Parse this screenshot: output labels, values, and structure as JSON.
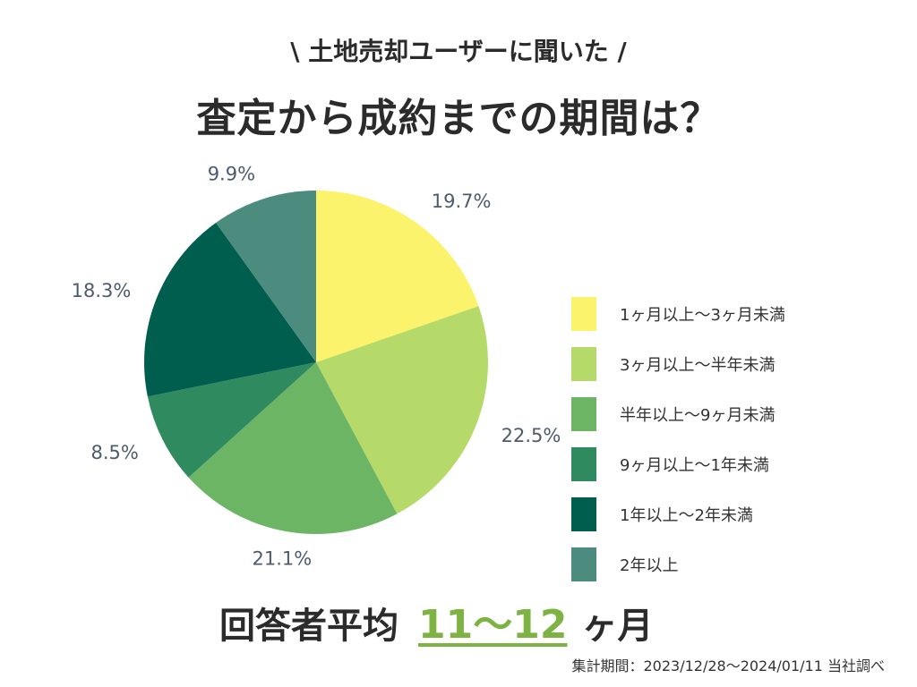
{
  "header": {
    "subtitle": "\\ 土地売却ユーザーに聞いた /",
    "title": "査定から成約までの期間は？"
  },
  "chart_data": {
    "type": "pie",
    "unit": "%",
    "slices": [
      {
        "label": "1ヶ月以上〜3ヶ月未満",
        "value": 19.7,
        "value_label": "19.7%",
        "color": "#fbf36b"
      },
      {
        "label": "3ヶ月以上〜半年未満",
        "value": 22.5,
        "value_label": "22.5%",
        "color": "#b5da6a"
      },
      {
        "label": "半年以上〜9ヶ月未満",
        "value": 21.1,
        "value_label": "21.1%",
        "color": "#6cb564"
      },
      {
        "label": "9ヶ月以上〜1年未満",
        "value": 8.5,
        "value_label": "8.5%",
        "color": "#2f8a5f"
      },
      {
        "label": "1年以上〜2年未満",
        "value": 18.3,
        "value_label": "18.3%",
        "color": "#005e4f"
      },
      {
        "label": "2年以上",
        "value": 9.9,
        "value_label": "9.9%",
        "color": "#4c8c7f"
      }
    ],
    "legend_position": "right"
  },
  "summary": {
    "label": "回答者平均",
    "value": "11〜12",
    "unit": "ヶ月"
  },
  "footnote": "集計期間：2023/12/28〜2024/01/11 当社調べ"
}
